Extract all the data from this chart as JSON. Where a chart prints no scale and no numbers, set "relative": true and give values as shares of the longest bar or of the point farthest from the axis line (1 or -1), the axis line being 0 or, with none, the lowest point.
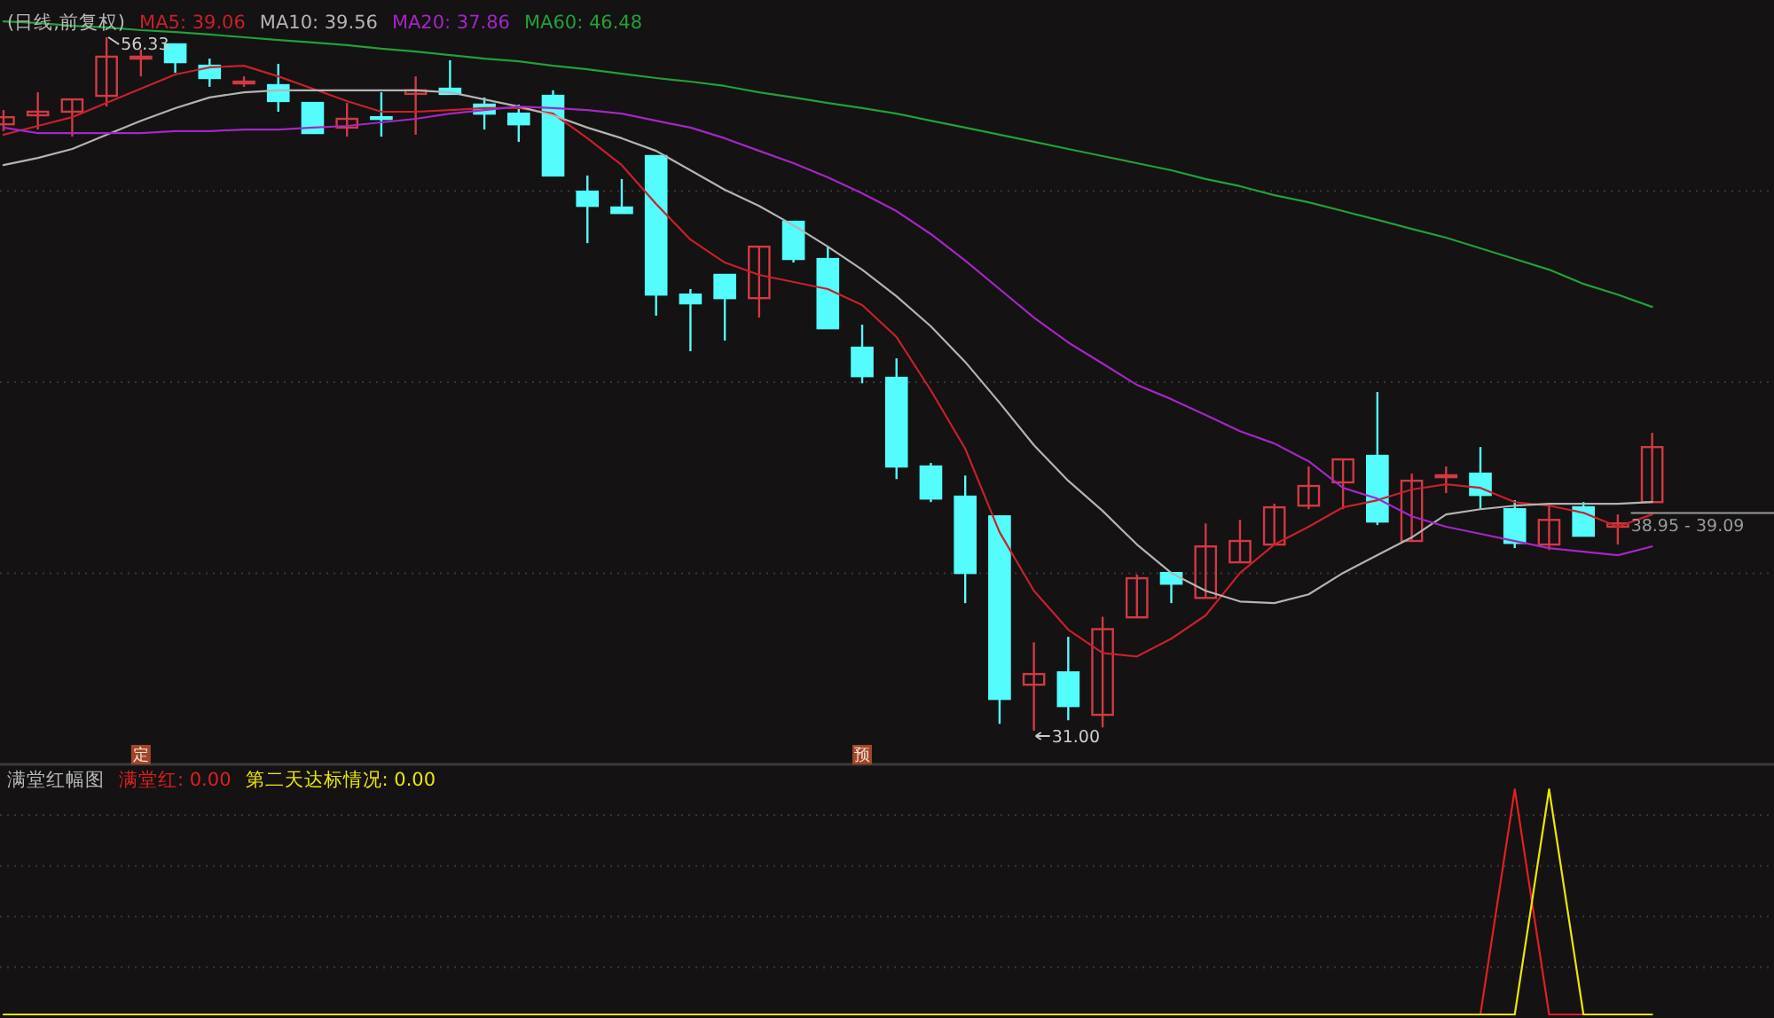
{
  "chart_data": [
    {
      "type": "candlestick",
      "title": "(日线,前复权)",
      "legend": "top",
      "grid": true,
      "tick_labels": false,
      "categories": [
        null,
        null,
        null,
        null,
        null,
        null,
        null,
        null,
        null,
        null,
        null,
        null,
        null,
        null,
        null,
        null,
        null,
        null,
        null,
        null,
        null,
        null,
        null,
        null,
        null,
        null,
        null,
        null,
        null,
        null,
        null,
        null,
        null,
        null,
        null,
        null,
        null,
        null,
        null,
        null,
        null,
        null,
        null,
        null,
        null,
        null,
        null,
        null,
        null
      ],
      "ohlc": [
        [
          53.15,
          53.67,
          52.9,
          53.41
        ],
        [
          53.48,
          54.32,
          52.96,
          53.61
        ],
        [
          53.61,
          54.06,
          52.7,
          54.06
        ],
        [
          54.19,
          56.33,
          53.8,
          55.62
        ],
        [
          55.55,
          55.88,
          54.9,
          55.62
        ],
        [
          56.07,
          56.07,
          55.03,
          55.42
        ],
        [
          55.29,
          55.55,
          54.52,
          54.84
        ],
        [
          54.65,
          54.9,
          54.52,
          54.71
        ],
        [
          54.58,
          55.36,
          53.61,
          54.0
        ],
        [
          53.93,
          53.93,
          52.83,
          52.83
        ],
        [
          53.03,
          53.93,
          52.7,
          53.35
        ],
        [
          53.41,
          54.32,
          52.7,
          53.35
        ],
        [
          54.26,
          54.9,
          52.77,
          54.39
        ],
        [
          54.45,
          55.49,
          54.26,
          54.26
        ],
        [
          53.87,
          54.13,
          52.96,
          53.54
        ],
        [
          53.54,
          53.87,
          52.51,
          53.15
        ],
        [
          54.19,
          54.39,
          51.28,
          51.28
        ],
        [
          50.69,
          51.28,
          48.81,
          50.17
        ],
        [
          50.11,
          51.15,
          49.91,
          49.91
        ],
        [
          51.99,
          51.99,
          46.16,
          46.93
        ],
        [
          46.93,
          47.13,
          44.86,
          46.61
        ],
        [
          47.65,
          47.65,
          45.25,
          46.8
        ],
        [
          46.8,
          48.68,
          46.09,
          48.68
        ],
        [
          49.59,
          49.59,
          48.1,
          48.23
        ],
        [
          48.23,
          48.68,
          45.7,
          45.7
        ],
        [
          44.99,
          45.83,
          43.69,
          43.95
        ],
        [
          43.89,
          44.6,
          40.19,
          40.65
        ],
        [
          40.65,
          40.78,
          39.35,
          39.48
        ],
        [
          39.55,
          40.32,
          35.66,
          36.76
        ],
        [
          38.83,
          38.83,
          31.25,
          32.16
        ],
        [
          32.68,
          34.23,
          31.0,
          33.07
        ],
        [
          33.13,
          34.43,
          31.38,
          31.9
        ],
        [
          31.58,
          35.16,
          31.12,
          34.71
        ],
        [
          35.14,
          36.7,
          35.14,
          36.57
        ],
        [
          36.76,
          36.76,
          35.66,
          36.37
        ],
        [
          35.85,
          38.57,
          35.85,
          37.73
        ],
        [
          37.15,
          38.7,
          37.15,
          37.93
        ],
        [
          37.8,
          39.29,
          37.8,
          39.16
        ],
        [
          39.22,
          40.65,
          39.09,
          39.94
        ],
        [
          40.07,
          40.91,
          39.09,
          40.91
        ],
        [
          41.04,
          43.37,
          38.51,
          38.64
        ],
        [
          37.93,
          40.39,
          37.93,
          40.13
        ],
        [
          40.26,
          40.65,
          39.68,
          40.33
        ],
        [
          40.39,
          41.36,
          39.09,
          39.61
        ],
        [
          39.09,
          39.42,
          37.67,
          37.86
        ],
        [
          37.8,
          39.29,
          37.6,
          38.7
        ],
        [
          39.16,
          39.35,
          38.12,
          38.12
        ],
        [
          38.45,
          38.9,
          37.8,
          38.57
        ],
        [
          39.35,
          41.88,
          39.35,
          41.36
        ]
      ],
      "colors": [
        "#d03a44",
        "#d03a44",
        "#d03a44",
        "#d03a44",
        "#d03a44",
        "#54fcfc",
        "#54fcfc",
        "#d03a44",
        "#54fcfc",
        "#54fcfc",
        "#d03a44",
        "#54fcfc",
        "#d03a44",
        "#54fcfc",
        "#54fcfc",
        "#54fcfc",
        "#54fcfc",
        "#54fcfc",
        "#54fcfc",
        "#54fcfc",
        "#54fcfc",
        "#54fcfc",
        "#d03a44",
        "#54fcfc",
        "#54fcfc",
        "#54fcfc",
        "#54fcfc",
        "#54fcfc",
        "#54fcfc",
        "#54fcfc",
        "#d03a44",
        "#54fcfc",
        "#d03a44",
        "#d03a44",
        "#54fcfc",
        "#d03a44",
        "#d03a44",
        "#d03a44",
        "#d03a44",
        "#d03a44",
        "#54fcfc",
        "#d03a44",
        "#d03a44",
        "#54fcfc",
        "#54fcfc",
        "#d03a44",
        "#54fcfc",
        "#d03a44",
        "#d03a44"
      ],
      "series": [
        {
          "name": "MA5: 39.06",
          "type": "line",
          "color": "#c8202a",
          "values": [
            52.77,
            53.09,
            53.41,
            53.93,
            54.45,
            54.97,
            55.23,
            55.29,
            54.9,
            54.45,
            54.0,
            53.61,
            53.61,
            53.67,
            53.74,
            53.74,
            53.54,
            52.64,
            51.66,
            50.24,
            48.94,
            48.1,
            47.65,
            47.39,
            47.13,
            46.55,
            45.38,
            43.43,
            41.3,
            38.25,
            36.11,
            34.69,
            33.84,
            33.71,
            34.36,
            35.21,
            36.76,
            37.8,
            38.45,
            39.16,
            39.42,
            39.81,
            40.0,
            39.87,
            39.35,
            39.22,
            38.96,
            38.45,
            38.9
          ]
        },
        {
          "name": "MA10: 39.56",
          "type": "line",
          "color": "#b4b4b4",
          "values": [
            51.66,
            51.92,
            52.25,
            52.77,
            53.28,
            53.74,
            54.13,
            54.32,
            54.39,
            54.39,
            54.39,
            54.39,
            54.39,
            54.32,
            54.06,
            53.8,
            53.48,
            53.03,
            52.64,
            52.18,
            51.47,
            50.76,
            50.17,
            49.46,
            48.68,
            47.84,
            46.87,
            45.77,
            44.47,
            42.98,
            41.43,
            40.13,
            39.03,
            37.8,
            36.76,
            36.11,
            35.72,
            35.66,
            35.98,
            36.76,
            37.41,
            38.06,
            38.9,
            39.09,
            39.22,
            39.29,
            39.29,
            39.29,
            39.35
          ]
        },
        {
          "name": "MA20: 37.86",
          "type": "line",
          "color": "#a526c4",
          "values": [
            53.03,
            52.83,
            52.83,
            52.83,
            52.83,
            52.9,
            52.9,
            52.96,
            52.96,
            53.03,
            53.09,
            53.22,
            53.35,
            53.54,
            53.67,
            53.8,
            53.74,
            53.67,
            53.54,
            53.28,
            53.03,
            52.64,
            52.18,
            51.73,
            51.21,
            50.63,
            49.98,
            49.14,
            48.17,
            47.13,
            46.09,
            45.18,
            44.41,
            43.63,
            43.11,
            42.53,
            41.94,
            41.49,
            40.84,
            39.87,
            39.48,
            38.83,
            38.45,
            38.19,
            37.93,
            37.67,
            37.54,
            37.41,
            37.73
          ]
        },
        {
          "name": "MA60: 46.48",
          "type": "line",
          "color": "#22a03a",
          "values": [
            56.91,
            56.85,
            56.75,
            56.69,
            56.59,
            56.52,
            56.43,
            56.33,
            56.23,
            56.14,
            56.04,
            55.91,
            55.81,
            55.68,
            55.55,
            55.45,
            55.29,
            55.16,
            55.0,
            54.84,
            54.71,
            54.55,
            54.32,
            54.13,
            53.93,
            53.74,
            53.54,
            53.28,
            53.03,
            52.77,
            52.51,
            52.25,
            51.99,
            51.73,
            51.47,
            51.15,
            50.89,
            50.56,
            50.3,
            49.98,
            49.66,
            49.33,
            49.01,
            48.62,
            48.23,
            47.84,
            47.32,
            46.93,
            46.48
          ]
        }
      ],
      "ref_lines": [
        {
          "axis": "y",
          "value": 38.95,
          "label": "38.95 - 39.09",
          "color": "#9a9a9a"
        }
      ],
      "annotations": [
        {
          "text": "56.33",
          "y": 56.33
        },
        "31.00",
        "定",
        "预"
      ]
    },
    {
      "type": "line",
      "title": "满堂红幅图",
      "legend": "top left",
      "grid": true,
      "tick_labels": false,
      "relative": true,
      "categories": [
        null,
        null,
        null,
        null,
        null,
        null,
        null,
        null,
        null,
        null,
        null,
        null,
        null,
        null,
        null,
        null,
        null,
        null,
        null,
        null,
        null,
        null,
        null,
        null,
        null,
        null,
        null,
        null,
        null,
        null,
        null,
        null,
        null,
        null,
        null,
        null,
        null,
        null,
        null,
        null,
        null,
        null,
        null,
        null,
        null,
        null,
        null,
        null,
        null
      ],
      "series": [
        {
          "name": "满堂红: 0.00",
          "color": "#e02020",
          "values": [
            null,
            null,
            null,
            null,
            null,
            null,
            null,
            null,
            null,
            null,
            null,
            null,
            null,
            null,
            null,
            null,
            null,
            null,
            null,
            null,
            null,
            null,
            null,
            null,
            null,
            null,
            null,
            null,
            null,
            null,
            null,
            null,
            null,
            null,
            null,
            null,
            null,
            null,
            null,
            null,
            null,
            null,
            null,
            0,
            1,
            0,
            0,
            null,
            null
          ]
        },
        {
          "name": "第二天达标情况: 0.00",
          "color": "#e8e800",
          "values": [
            0,
            0,
            0,
            0,
            0,
            0,
            0,
            0,
            0,
            0,
            0,
            0,
            0,
            0,
            0,
            0,
            0,
            0,
            0,
            0,
            0,
            0,
            0,
            0,
            0,
            0,
            0,
            0,
            0,
            0,
            0,
            0,
            0,
            0,
            0,
            0,
            0,
            0,
            0,
            0,
            0,
            0,
            0,
            0,
            0,
            1,
            0,
            0,
            0
          ]
        }
      ]
    }
  ]
}
